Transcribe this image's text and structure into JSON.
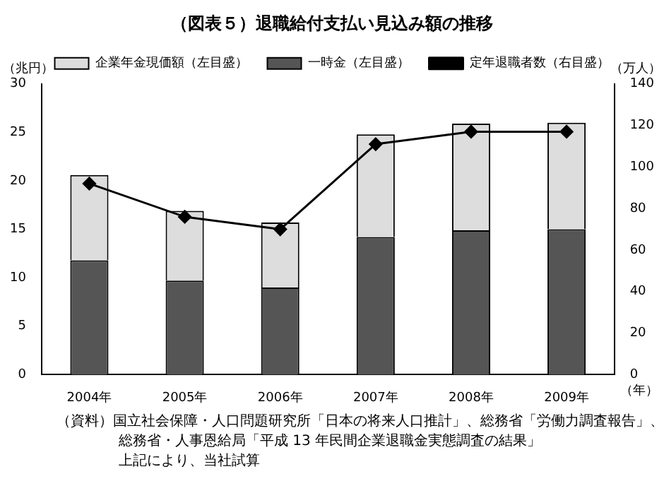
{
  "chart_data": {
    "type": "bar",
    "title": "（図表５）退職給付支払い見込み額の推移",
    "xlabel": "（年）",
    "ylabel": "（兆円）",
    "y2label": "（万人）",
    "categories": [
      "2004年",
      "2005年",
      "2006年",
      "2007年",
      "2008年",
      "2009年"
    ],
    "stacked": true,
    "series": [
      {
        "name": "一時金（左目盛）",
        "color": "#555555",
        "values": [
          11.8,
          9.7,
          9.0,
          14.2,
          14.9,
          15.0
        ]
      },
      {
        "name": "企業年金現価額（左目盛）",
        "color": "#dddddd",
        "values": [
          8.8,
          7.2,
          6.7,
          10.6,
          11.0,
          11.0
        ]
      },
      {
        "name": "定年退職者数（右目盛）",
        "type": "line",
        "axis": "y2",
        "color": "#000000",
        "marker": "diamond",
        "values": [
          92,
          76,
          70,
          111,
          117,
          117
        ]
      }
    ],
    "ylim": [
      0,
      30
    ],
    "yticks": [
      0,
      5,
      10,
      15,
      20,
      25,
      30
    ],
    "y2lim": [
      0,
      140
    ],
    "y2ticks": [
      0,
      20,
      40,
      60,
      80,
      100,
      120,
      140
    ],
    "grid": false,
    "legend": "top",
    "annotations": [
      "（資料）国立社会保障・人口問題研究所「日本の将来人口推計」、総務省「労働力調査報告」、",
      "総務省・人事恩給局「平成 13 年民間企業退職金実態調査の結果」",
      "上記により、当社試算"
    ]
  }
}
